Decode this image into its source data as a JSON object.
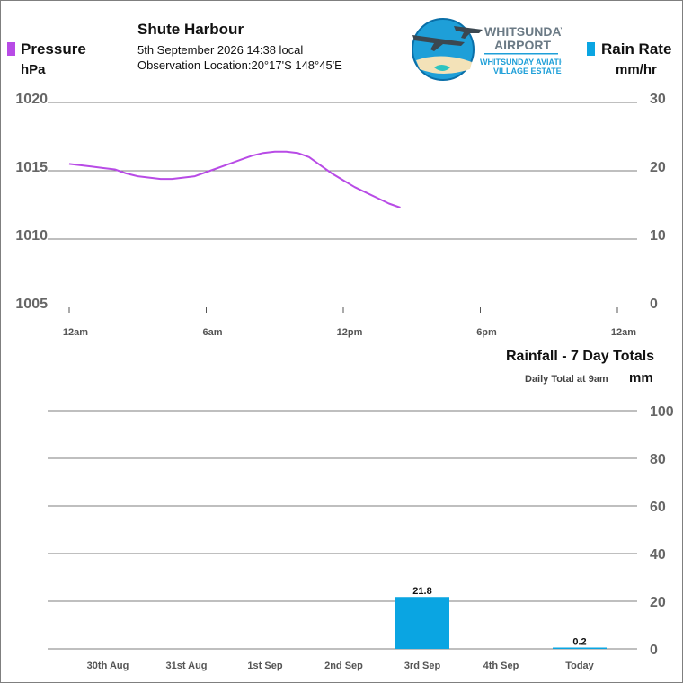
{
  "header": {
    "station": "Shute Harbour",
    "datetime": "5th September 2026  14:38 local",
    "location_label": "Observation Location:",
    "location_value": "20°17'S 148°45'E"
  },
  "logo": {
    "line1": "WHITSUNDAY",
    "line2": "AIRPORT",
    "line3": "WHITSUNDAY AVIATION",
    "line4": "VILLAGE ESTATE"
  },
  "pressure_legend": {
    "label": "Pressure",
    "unit": "hPa",
    "color": "#b84be6"
  },
  "rain_legend": {
    "label": "Rain Rate",
    "unit": "mm/hr",
    "color": "#0aa5e2"
  },
  "rainfall_header": {
    "title": "Rainfall - 7 Day Totals",
    "subtitle": "Daily Total at 9am",
    "unit": "mm"
  },
  "chart_data": [
    {
      "type": "line",
      "x_ticks": [
        "12am",
        "6am",
        "12pm",
        "6pm",
        "12am"
      ],
      "x_range_hours": [
        0,
        24
      ],
      "y_left": {
        "label": "hPa",
        "ticks": [
          1005,
          1010,
          1015,
          1020
        ],
        "range": [
          1005,
          1020
        ]
      },
      "y_right": {
        "label": "mm/hr",
        "ticks": [
          0,
          10,
          20,
          30
        ],
        "range": [
          0,
          30
        ]
      },
      "grid": true,
      "series": [
        {
          "name": "Pressure",
          "color": "#b84be6",
          "x_hours": [
            0,
            0.5,
            1,
            1.5,
            2,
            2.5,
            3,
            3.5,
            4,
            4.5,
            5,
            5.5,
            6,
            6.5,
            7,
            7.5,
            8,
            8.5,
            9,
            9.5,
            10,
            10.5,
            11,
            11.5,
            12,
            12.5,
            13,
            13.5,
            14,
            14.5
          ],
          "values": [
            1015.5,
            1015.4,
            1015.3,
            1015.2,
            1015.1,
            1014.8,
            1014.6,
            1014.5,
            1014.4,
            1014.4,
            1014.5,
            1014.6,
            1014.9,
            1015.2,
            1015.5,
            1015.8,
            1016.1,
            1016.3,
            1016.4,
            1016.4,
            1016.3,
            1016.0,
            1015.4,
            1014.8,
            1014.3,
            1013.8,
            1013.4,
            1013.0,
            1012.6,
            1012.3
          ]
        },
        {
          "name": "Rain Rate",
          "color": "#0aa5e2",
          "values": []
        }
      ]
    },
    {
      "type": "bar",
      "title": "Rainfall - 7 Day Totals",
      "categories": [
        "30th Aug",
        "31st Aug",
        "1st Sep",
        "2nd Sep",
        "3rd Sep",
        "4th Sep",
        "Today"
      ],
      "values": [
        0,
        0,
        0,
        0,
        21.8,
        0,
        0.2
      ],
      "labels": [
        "",
        "",
        "",
        "",
        "21.8",
        "",
        "0.2"
      ],
      "ylabel": "mm",
      "yticks": [
        0,
        20,
        40,
        60,
        80,
        100
      ],
      "ylim": [
        0,
        100
      ],
      "color": "#0aa5e2",
      "grid": true
    }
  ]
}
